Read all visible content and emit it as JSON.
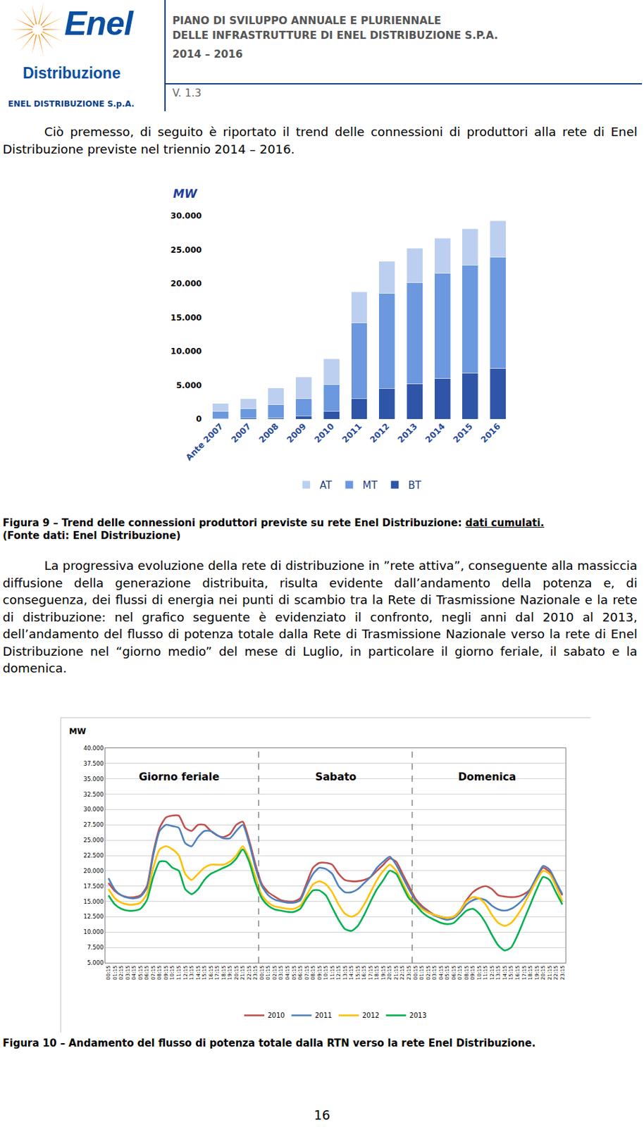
{
  "header": {
    "logo_brand": "Enel",
    "logo_sub": "Distribuzione",
    "company": "ENEL DISTRIBUZIONE S.p.A.",
    "title_lines": [
      "PIANO DI SVILUPPO ANNUALE E PLURIENNALE",
      "DELLE INFRASTRUTTURE DI ENEL DISTRIBUZIONE S.P.A.",
      "2014 – 2016"
    ],
    "version": "V. 1.3"
  },
  "paragraphs": [
    "Ciò premesso, di seguito è riportato il trend delle connessioni di produttori alla rete di Enel Distribuzione previste nel triennio 2014 – 2016.",
    "La progressiva evoluzione della rete di distribuzione in ”rete attiva”, conseguente alla massiccia diffusione della generazione distribuita, risulta evidente dall’andamento della potenza e, di conseguenza, dei flussi di energia nei punti di scambio tra la Rete di Trasmissione Nazionale e la rete di distribuzione: nel grafico seguente è evidenziato il confronto, negli anni dal 2010 al 2013, dell’andamento del flusso di potenza totale dalla Rete di Trasmissione Nazionale verso la rete di Enel Distribuzione nel “giorno medio” del mese di Luglio, in particolare il giorno feriale, il sabato e la domenica."
  ],
  "figures": [
    {
      "text": "Figura 9 – Trend delle connessioni produttori previste su rete Enel Distribuzione:",
      "underlined": "dati cumulati.",
      "source": "(Fonte dati: Enel Distribuzione)"
    },
    {
      "text": "Figura 10 – Andamento del flusso di potenza totale dalla RTN verso la rete Enel Distribuzione."
    }
  ],
  "chart_data": [
    {
      "type": "bar",
      "stacked": true,
      "ylabel": "MW",
      "categories": [
        "Ante 2007",
        "2007",
        "2008",
        "2009",
        "2010",
        "2011",
        "2012",
        "2013",
        "2014",
        "2015",
        "2016"
      ],
      "series": [
        {
          "name": "BT",
          "color": "#2f55a8",
          "values": [
            50,
            100,
            150,
            400,
            1100,
            3000,
            4500,
            5200,
            6000,
            6800,
            7500
          ]
        },
        {
          "name": "MT",
          "color": "#6b98de",
          "values": [
            1050,
            1400,
            1950,
            2600,
            4000,
            11200,
            14100,
            14900,
            15500,
            15900,
            16400
          ]
        },
        {
          "name": "AT",
          "color": "#bccff0",
          "values": [
            1200,
            1500,
            2500,
            3200,
            3800,
            4600,
            4700,
            5100,
            5200,
            5400,
            5400
          ]
        }
      ],
      "ylim": [
        0,
        30000
      ],
      "yticks": [
        0,
        {
          "value": 5000,
          "label": "5.000"
        },
        {
          "value": 10000,
          "label": "10.000"
        },
        {
          "value": 15000,
          "label": "15.000"
        },
        {
          "value": 20000,
          "label": "20.000"
        },
        {
          "value": 25000,
          "label": "25.000"
        },
        {
          "value": 30000,
          "label": "30.000"
        }
      ],
      "grid": false,
      "legend": "bottom"
    },
    {
      "type": "line",
      "ylabel": "MW",
      "annotations": [
        "Giorno feriale",
        "Sabato",
        "Domenica"
      ],
      "categories": [
        "00:15",
        "01:15",
        "02:15",
        "03:15",
        "04:15",
        "05:15",
        "06:15",
        "07:15",
        "08:15",
        "09:15",
        "10:15",
        "11:15",
        "12:15",
        "13:15",
        "14:15",
        "15:15",
        "16:15",
        "17:15",
        "18:15",
        "19:15",
        "20:15",
        "21:15",
        "22:15",
        "23:15",
        "00:15",
        "01:15",
        "02:15",
        "03:15",
        "04:15",
        "05:15",
        "06:15",
        "07:15",
        "08:15",
        "09:15",
        "10:15",
        "11:15",
        "12:15",
        "13:15",
        "14:15",
        "15:15",
        "16:15",
        "17:15",
        "18:15",
        "19:15",
        "20:15",
        "21:15",
        "22:15",
        "23:15",
        "00:15",
        "01:15",
        "02:15",
        "03:15",
        "04:15",
        "05:15",
        "06:15",
        "07:15",
        "08:15",
        "09:15",
        "10:15",
        "11:15",
        "12:15",
        "13:15",
        "14:15",
        "15:15",
        "16:15",
        "17:15",
        "18:15",
        "19:15",
        "20:15",
        "21:15",
        "22:15",
        "23:15"
      ],
      "series": [
        {
          "name": "2010",
          "color": "#c0504d",
          "values": [
            18000,
            16700,
            16000,
            15700,
            15700,
            16000,
            17500,
            23000,
            27000,
            28700,
            29000,
            29000,
            27000,
            26500,
            27500,
            27500,
            26500,
            25800,
            25500,
            26000,
            27500,
            28000,
            25000,
            21000,
            17800,
            16500,
            15800,
            15200,
            15000,
            15000,
            15500,
            18000,
            20500,
            21300,
            21300,
            21000,
            19500,
            18500,
            18300,
            18300,
            18500,
            19000,
            20000,
            21000,
            22000,
            21500,
            19500,
            17500,
            15500,
            14300,
            13500,
            12800,
            12500,
            12300,
            12500,
            13500,
            15200,
            16500,
            17200,
            17500,
            17000,
            16000,
            15800,
            15700,
            15800,
            16200,
            17000,
            19000,
            20500,
            19800,
            18000,
            16000
          ]
        },
        {
          "name": "2011",
          "color": "#4f81bd",
          "values": [
            18800,
            16900,
            16000,
            15600,
            15500,
            15800,
            17200,
            22500,
            26500,
            27500,
            27300,
            27000,
            24500,
            24000,
            25500,
            26500,
            26500,
            25800,
            25300,
            25300,
            26500,
            27500,
            24500,
            20500,
            17500,
            16000,
            15300,
            15000,
            14800,
            14800,
            15200,
            17500,
            19500,
            20500,
            20300,
            19500,
            17500,
            16500,
            16500,
            17000,
            18000,
            19000,
            20500,
            21500,
            22300,
            21000,
            19000,
            17000,
            15200,
            14000,
            13300,
            12700,
            12300,
            12000,
            12300,
            13200,
            14500,
            15200,
            15500,
            15200,
            14300,
            13700,
            13500,
            13800,
            14500,
            15500,
            17000,
            19000,
            20800,
            20200,
            18200,
            16200
          ]
        },
        {
          "name": "2012",
          "color": "#ffc000",
          "values": [
            17000,
            15500,
            14800,
            14500,
            14500,
            14800,
            16200,
            20500,
            23500,
            24000,
            23500,
            22500,
            19500,
            18500,
            19500,
            20500,
            21000,
            21000,
            21000,
            21500,
            22500,
            24000,
            22000,
            19000,
            16000,
            14800,
            14200,
            14000,
            13800,
            13800,
            14300,
            16000,
            17800,
            18300,
            17800,
            16500,
            14500,
            13000,
            12500,
            13000,
            14500,
            16500,
            18500,
            20000,
            21000,
            20000,
            18000,
            16000,
            14800,
            13800,
            13200,
            12800,
            12500,
            12300,
            12500,
            13500,
            15000,
            15700,
            15500,
            14500,
            12800,
            11500,
            11000,
            11500,
            12800,
            14500,
            16500,
            18500,
            20000,
            19500,
            17500,
            15000
          ]
        },
        {
          "name": "2013",
          "color": "#00b050",
          "values": [
            16000,
            14500,
            13800,
            13500,
            13500,
            13800,
            15200,
            19000,
            21500,
            21500,
            20500,
            20000,
            17000,
            16200,
            17000,
            18500,
            19500,
            20000,
            20500,
            21000,
            22000,
            23500,
            21500,
            18000,
            15500,
            14300,
            13700,
            13500,
            13300,
            13300,
            13800,
            15500,
            16800,
            16800,
            16000,
            14000,
            12000,
            10500,
            10200,
            11000,
            12800,
            15000,
            17000,
            18500,
            20000,
            19500,
            17500,
            15500,
            14500,
            13300,
            12500,
            12000,
            11500,
            11300,
            11500,
            12500,
            13500,
            13800,
            13000,
            11500,
            9500,
            7800,
            7000,
            7500,
            9500,
            12000,
            14500,
            17000,
            19000,
            18500,
            16500,
            14500
          ]
        }
      ],
      "ylim": [
        5000,
        40000
      ],
      "yticks": [
        {
          "value": 5000,
          "label": "5.000"
        },
        {
          "value": 7500,
          "label": "7.500"
        },
        {
          "value": 10000,
          "label": "10.000"
        },
        {
          "value": 12500,
          "label": "12.500"
        },
        {
          "value": 15000,
          "label": "15.000"
        },
        {
          "value": 17500,
          "label": "17.500"
        },
        {
          "value": 20000,
          "label": "20.000"
        },
        {
          "value": 22500,
          "label": "22.500"
        },
        {
          "value": 25000,
          "label": "25.000"
        },
        {
          "value": 27500,
          "label": "27.500"
        },
        {
          "value": 30000,
          "label": "30.000"
        },
        {
          "value": 32500,
          "label": "32.500"
        },
        {
          "value": 35000,
          "label": "35.000"
        },
        {
          "value": 37500,
          "label": "37.500"
        },
        {
          "value": 40000,
          "label": "40.000"
        }
      ],
      "grid": true,
      "legend": "bottom"
    }
  ],
  "page_number": "16"
}
